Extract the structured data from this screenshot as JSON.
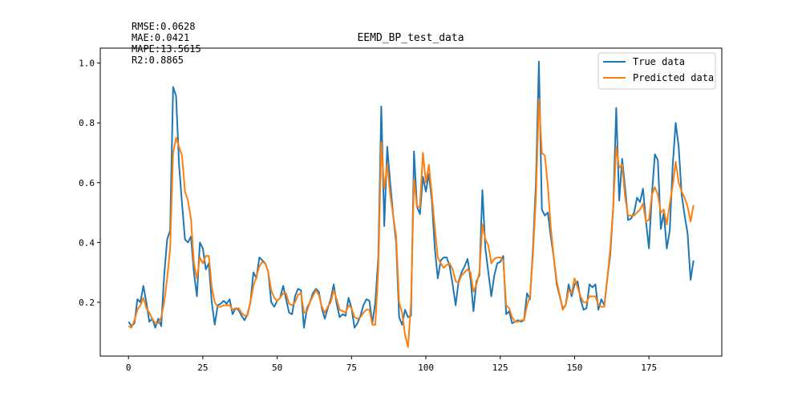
{
  "chart_data": {
    "type": "line",
    "title": "EEMD_BP_test_data",
    "xlabel": "",
    "ylabel": "",
    "xlim": [
      -9.5,
      199.5
    ],
    "ylim": [
      0.02,
      1.05
    ],
    "x_ticks": [
      0,
      25,
      50,
      75,
      100,
      125,
      150,
      175
    ],
    "y_ticks": [
      0.2,
      0.4,
      0.6,
      0.8,
      1.0
    ],
    "grid": false,
    "legend_position": "top-right",
    "annotations": [
      "RMSE:0.0628",
      "MAE:0.0421",
      "MAPE:13.5615",
      "R2:0.8865"
    ],
    "series": [
      {
        "name": "True data",
        "color": "#1f77b4",
        "values": [
          0.135,
          0.12,
          0.13,
          0.21,
          0.2,
          0.255,
          0.2,
          0.135,
          0.145,
          0.115,
          0.145,
          0.12,
          0.29,
          0.41,
          0.44,
          0.92,
          0.89,
          0.66,
          0.53,
          0.41,
          0.4,
          0.42,
          0.3,
          0.22,
          0.4,
          0.38,
          0.31,
          0.33,
          0.2,
          0.125,
          0.19,
          0.195,
          0.205,
          0.195,
          0.21,
          0.16,
          0.18,
          0.175,
          0.155,
          0.14,
          0.16,
          0.2,
          0.3,
          0.28,
          0.35,
          0.34,
          0.33,
          0.3,
          0.2,
          0.185,
          0.205,
          0.215,
          0.255,
          0.21,
          0.165,
          0.16,
          0.22,
          0.245,
          0.24,
          0.115,
          0.18,
          0.2,
          0.23,
          0.245,
          0.235,
          0.18,
          0.145,
          0.18,
          0.21,
          0.26,
          0.195,
          0.15,
          0.16,
          0.155,
          0.215,
          0.18,
          0.115,
          0.13,
          0.155,
          0.19,
          0.21,
          0.205,
          0.13,
          0.2,
          0.35,
          0.855,
          0.455,
          0.72,
          0.6,
          0.49,
          0.4,
          0.15,
          0.125,
          0.175,
          0.15,
          0.155,
          0.705,
          0.52,
          0.495,
          0.62,
          0.57,
          0.63,
          0.54,
          0.38,
          0.28,
          0.34,
          0.35,
          0.35,
          0.32,
          0.26,
          0.19,
          0.27,
          0.3,
          0.32,
          0.345,
          0.28,
          0.17,
          0.27,
          0.29,
          0.575,
          0.38,
          0.3,
          0.22,
          0.29,
          0.33,
          0.335,
          0.355,
          0.16,
          0.17,
          0.13,
          0.135,
          0.14,
          0.135,
          0.14,
          0.23,
          0.21,
          0.38,
          0.6,
          1.005,
          0.51,
          0.49,
          0.5,
          0.42,
          0.35,
          0.26,
          0.22,
          0.18,
          0.19,
          0.26,
          0.22,
          0.26,
          0.27,
          0.21,
          0.175,
          0.18,
          0.26,
          0.25,
          0.26,
          0.175,
          0.21,
          0.19,
          0.28,
          0.36,
          0.52,
          0.85,
          0.54,
          0.68,
          0.58,
          0.475,
          0.48,
          0.5,
          0.55,
          0.535,
          0.58,
          0.47,
          0.38,
          0.56,
          0.695,
          0.675,
          0.445,
          0.5,
          0.38,
          0.44,
          0.66,
          0.8,
          0.72,
          0.56,
          0.49,
          0.43,
          0.275,
          0.34
        ]
      },
      {
        "name": "Predicted data",
        "color": "#ff7f0e",
        "values": [
          0.12,
          0.115,
          0.14,
          0.175,
          0.19,
          0.215,
          0.18,
          0.165,
          0.145,
          0.13,
          0.13,
          0.15,
          0.2,
          0.28,
          0.38,
          0.7,
          0.75,
          0.72,
          0.69,
          0.57,
          0.54,
          0.48,
          0.33,
          0.28,
          0.35,
          0.33,
          0.355,
          0.355,
          0.25,
          0.2,
          0.185,
          0.185,
          0.19,
          0.19,
          0.19,
          0.175,
          0.18,
          0.18,
          0.165,
          0.155,
          0.155,
          0.2,
          0.255,
          0.285,
          0.32,
          0.335,
          0.33,
          0.3,
          0.24,
          0.215,
          0.205,
          0.215,
          0.23,
          0.23,
          0.195,
          0.19,
          0.2,
          0.225,
          0.23,
          0.165,
          0.17,
          0.2,
          0.22,
          0.24,
          0.225,
          0.185,
          0.165,
          0.185,
          0.2,
          0.24,
          0.21,
          0.175,
          0.17,
          0.165,
          0.19,
          0.18,
          0.15,
          0.145,
          0.15,
          0.165,
          0.175,
          0.175,
          0.125,
          0.125,
          0.31,
          0.735,
          0.58,
          0.66,
          0.56,
          0.49,
          0.42,
          0.2,
          0.165,
          0.09,
          0.05,
          0.2,
          0.61,
          0.52,
          0.52,
          0.7,
          0.6,
          0.66,
          0.56,
          0.45,
          0.35,
          0.33,
          0.315,
          0.325,
          0.33,
          0.31,
          0.27,
          0.265,
          0.29,
          0.3,
          0.31,
          0.3,
          0.235,
          0.26,
          0.3,
          0.46,
          0.41,
          0.39,
          0.33,
          0.345,
          0.35,
          0.35,
          0.34,
          0.19,
          0.18,
          0.15,
          0.135,
          0.135,
          0.14,
          0.14,
          0.19,
          0.22,
          0.36,
          0.55,
          0.88,
          0.7,
          0.69,
          0.59,
          0.45,
          0.35,
          0.27,
          0.225,
          0.175,
          0.19,
          0.24,
          0.23,
          0.28,
          0.25,
          0.22,
          0.2,
          0.2,
          0.22,
          0.22,
          0.22,
          0.19,
          0.185,
          0.185,
          0.28,
          0.38,
          0.52,
          0.72,
          0.65,
          0.66,
          0.55,
          0.49,
          0.49,
          0.49,
          0.5,
          0.51,
          0.53,
          0.47,
          0.475,
          0.56,
          0.585,
          0.56,
          0.5,
          0.51,
          0.46,
          0.53,
          0.59,
          0.67,
          0.6,
          0.57,
          0.55,
          0.52,
          0.47,
          0.525
        ]
      }
    ]
  }
}
